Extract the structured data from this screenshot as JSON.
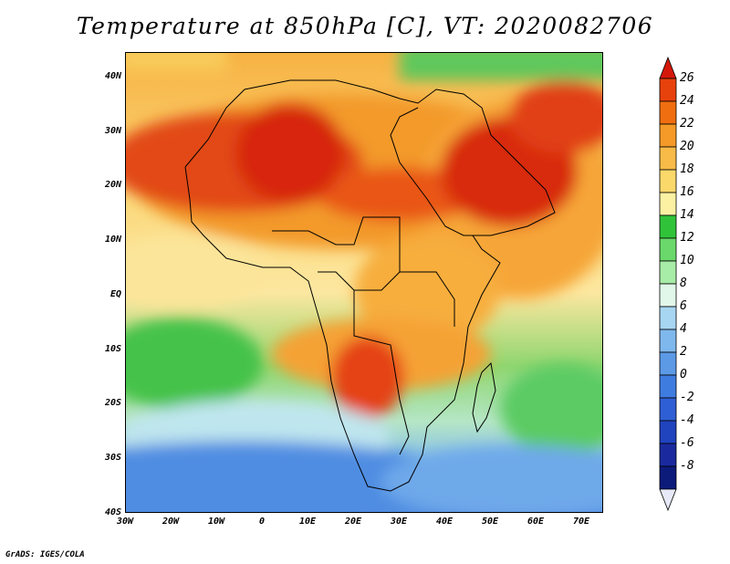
{
  "title": "Temperature at 850hPa [C], VT: 2020082706",
  "footer": "GrADS: IGES/COLA",
  "map": {
    "lat_ticks": [
      "40N",
      "30N",
      "20N",
      "10N",
      "EQ",
      "10S",
      "20S",
      "30S",
      "40S"
    ],
    "lon_ticks": [
      "30W",
      "20W",
      "10W",
      "0",
      "10E",
      "20E",
      "30E",
      "40E",
      "50E",
      "60E",
      "70E"
    ]
  },
  "colorbar": {
    "labels": [
      "26",
      "24",
      "22",
      "20",
      "18",
      "16",
      "14",
      "12",
      "10",
      "8",
      "6",
      "4",
      "2",
      "0",
      "-2",
      "-4",
      "-6",
      "-8"
    ],
    "colors": [
      "#d4180b",
      "#e8420c",
      "#f06e10",
      "#f59a28",
      "#f8bb48",
      "#fbd86a",
      "#fcf1a3",
      "#30c33a",
      "#6ad86a",
      "#a7eca7",
      "#e1f7e9",
      "#a7d6f2",
      "#7fb8ed",
      "#5c9ae6",
      "#3f7ce0",
      "#2f5fd4",
      "#2043be",
      "#1a2a9e",
      "#0c1a7a",
      "#e7e9f9"
    ]
  }
}
